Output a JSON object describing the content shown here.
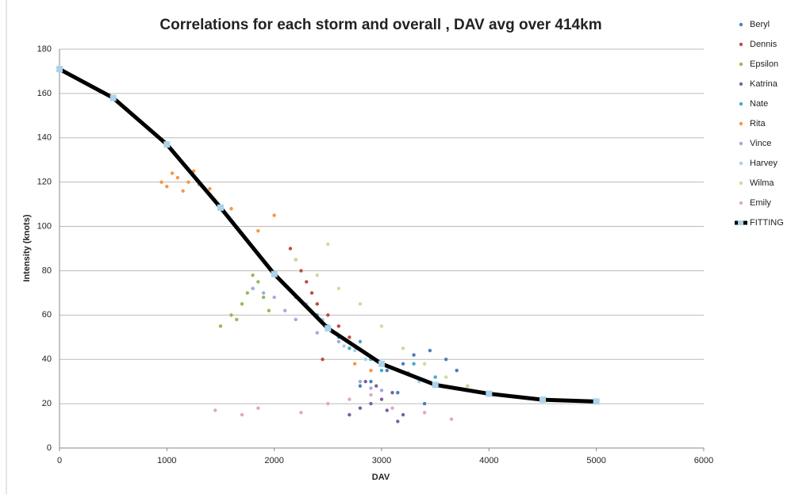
{
  "chart_data": {
    "type": "scatter",
    "title": "Correlations for each storm and overall , DAV avg over 414km",
    "x_label": "DAV",
    "y_label": "Intensity (knots)",
    "xlim": [
      0,
      6000
    ],
    "ylim": [
      0,
      180
    ],
    "xticks": [
      0,
      1000,
      2000,
      3000,
      4000,
      5000,
      6000
    ],
    "yticks": [
      0,
      20,
      40,
      60,
      80,
      100,
      120,
      140,
      160,
      180
    ],
    "grid": true,
    "legend": "right",
    "series": [
      {
        "name": "Beryl",
        "color": "#4a7ebb",
        "x": [
          2900,
          3050,
          3200,
          3300,
          3450,
          3600,
          3150,
          2800,
          3400,
          3700
        ],
        "values": [
          30,
          35,
          38,
          42,
          44,
          40,
          25,
          28,
          20,
          35
        ]
      },
      {
        "name": "Dennis",
        "color": "#be4b48",
        "x": [
          2150,
          2200,
          2250,
          2300,
          2350,
          2400,
          2500,
          2600,
          2700,
          2450
        ],
        "values": [
          90,
          85,
          80,
          75,
          70,
          65,
          60,
          55,
          50,
          40
        ]
      },
      {
        "name": "Epsilon",
        "color": "#98b954",
        "x": [
          1500,
          1600,
          1700,
          1750,
          1800,
          1850,
          1900,
          1950,
          1650,
          1800
        ],
        "values": [
          55,
          60,
          65,
          70,
          72,
          75,
          68,
          62,
          58,
          78
        ]
      },
      {
        "name": "Katrina",
        "color": "#7d60a0",
        "x": [
          2700,
          2800,
          2900,
          3000,
          3100,
          3200,
          2950,
          3050,
          2850,
          3150
        ],
        "values": [
          15,
          18,
          20,
          22,
          25,
          15,
          28,
          17,
          30,
          12
        ]
      },
      {
        "name": "Nate",
        "color": "#46aac5",
        "x": [
          2400,
          2500,
          2600,
          2700,
          2800,
          2900,
          3000,
          3300,
          3500,
          3800
        ],
        "values": [
          60,
          55,
          50,
          45,
          48,
          40,
          35,
          38,
          32,
          28
        ]
      },
      {
        "name": "Rita",
        "color": "#f79646",
        "x": [
          950,
          1000,
          1050,
          1100,
          1150,
          1200,
          1250,
          1300,
          1400,
          1600,
          1850,
          2000,
          2200,
          2750,
          2900
        ],
        "values": [
          120,
          118,
          124,
          122,
          116,
          120,
          125,
          119,
          117,
          108,
          98,
          105,
          68,
          38,
          35
        ]
      },
      {
        "name": "Vince",
        "color": "#9dabe0",
        "x": [
          1800,
          1900,
          2000,
          2100,
          2200,
          2400,
          2600,
          2800,
          2900,
          3000
        ],
        "values": [
          72,
          70,
          68,
          62,
          58,
          52,
          48,
          30,
          27,
          26
        ]
      },
      {
        "name": "Harvey",
        "color": "#a9d0e8",
        "x": [
          2300,
          2450,
          2550,
          2650,
          2750,
          2850,
          3100,
          3250,
          3350,
          3550
        ],
        "values": [
          65,
          58,
          52,
          46,
          44,
          40,
          36,
          34,
          30,
          28
        ]
      },
      {
        "name": "Wilma",
        "color": "#c8dca0",
        "x": [
          2200,
          2400,
          2600,
          2800,
          3000,
          3200,
          3400,
          3600,
          3800,
          2500
        ],
        "values": [
          85,
          78,
          72,
          65,
          55,
          45,
          38,
          32,
          28,
          92
        ]
      },
      {
        "name": "Emily",
        "color": "#d9a9c9",
        "x": [
          1450,
          1700,
          1850,
          2250,
          2500,
          2700,
          2900,
          3100,
          3400,
          3650
        ],
        "values": [
          17,
          15,
          18,
          16,
          20,
          22,
          24,
          18,
          16,
          13
        ]
      },
      {
        "name": "FITTING",
        "color": "#000000",
        "style": "line",
        "marker_color": "#a9d4ea",
        "x": [
          0,
          500,
          1000,
          1500,
          2000,
          2500,
          3000,
          3500,
          4000,
          4500,
          5000
        ],
        "values": [
          171,
          158,
          137,
          108.5,
          78.5,
          54,
          38,
          28.5,
          24.5,
          21.8,
          21
        ]
      }
    ]
  }
}
